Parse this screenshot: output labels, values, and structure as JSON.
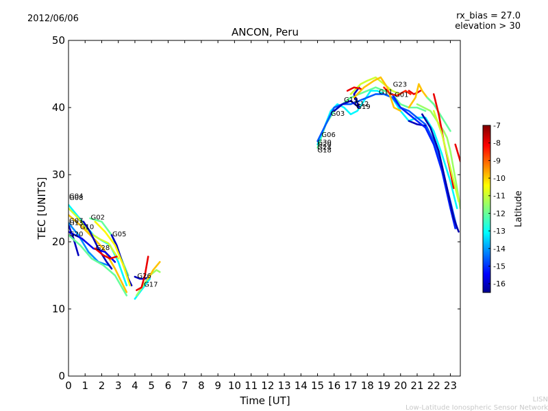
{
  "header": {
    "date": "2012/06/06",
    "title": "ANCON, Peru",
    "bias_text": "rx_bias = 27.0",
    "elevation_text": "elevation > 30"
  },
  "footer": {
    "brand": "LISN",
    "org": "Low-Latitude Ionospheric Sensor Network"
  },
  "colorbar": {
    "label": "Latitude",
    "ticks": [
      "-7",
      "-8",
      "-9",
      "-10",
      "-11",
      "-12",
      "-13",
      "-14",
      "-15",
      "-16"
    ],
    "range": [
      -16.5,
      -7
    ],
    "colormap": [
      "#00008f",
      "#0000ff",
      "#0080ff",
      "#00ffff",
      "#80ff80",
      "#ffff00",
      "#ff8000",
      "#ff0000",
      "#800000"
    ]
  },
  "chart_data": {
    "type": "line",
    "title": "ANCON, Peru",
    "xlabel": "Time [UT]",
    "ylabel": "TEC [UNITS]",
    "xlim": [
      0,
      23.6
    ],
    "ylim": [
      0,
      50
    ],
    "xticks": [
      "0",
      "1",
      "2",
      "3",
      "4",
      "5",
      "6",
      "7",
      "8",
      "9",
      "10",
      "11",
      "12",
      "13",
      "14",
      "15",
      "16",
      "17",
      "18",
      "19",
      "20",
      "21",
      "22",
      "23"
    ],
    "yticks": [
      "0",
      "10",
      "20",
      "30",
      "40",
      "50"
    ],
    "grid": false,
    "series": [
      {
        "lat": -13.0,
        "values": [
          [
            0.0,
            25.5
          ],
          [
            0.5,
            24.0
          ],
          [
            1.0,
            22.5
          ],
          [
            1.5,
            21.0
          ],
          [
            2.0,
            20.2
          ],
          [
            2.5,
            19.5
          ],
          [
            3.0,
            17.0
          ],
          [
            3.5,
            13.5
          ]
        ]
      },
      {
        "lat": -11.0,
        "values": [
          [
            0.0,
            25.0
          ],
          [
            0.6,
            23.5
          ],
          [
            1.2,
            21.5
          ],
          [
            1.8,
            20.5
          ],
          [
            2.4,
            19.8
          ],
          [
            3.0,
            17.5
          ]
        ]
      },
      {
        "lat": -10.0,
        "values": [
          [
            0.0,
            24.0
          ],
          [
            0.7,
            22.5
          ],
          [
            1.4,
            20.8
          ],
          [
            2.1,
            19.0
          ],
          [
            2.8,
            16.0
          ],
          [
            3.5,
            12.5
          ]
        ]
      },
      {
        "lat": -16.0,
        "values": [
          [
            0.0,
            22.5
          ],
          [
            0.3,
            20.5
          ],
          [
            0.6,
            18.0
          ]
        ]
      },
      {
        "lat": -14.0,
        "values": [
          [
            0.0,
            22.8
          ],
          [
            0.6,
            21.0
          ],
          [
            1.2,
            18.5
          ],
          [
            1.8,
            17.0
          ],
          [
            2.4,
            16.5
          ]
        ]
      },
      {
        "lat": -15.5,
        "values": [
          [
            0.0,
            21.5
          ],
          [
            0.8,
            20.5
          ],
          [
            1.5,
            19.0
          ],
          [
            2.2,
            18.5
          ],
          [
            2.8,
            17.0
          ]
        ]
      },
      {
        "lat": -12.0,
        "values": [
          [
            0.0,
            21.0
          ],
          [
            0.7,
            19.5
          ],
          [
            1.4,
            17.5
          ],
          [
            2.1,
            16.5
          ],
          [
            2.8,
            15.0
          ],
          [
            3.5,
            12.0
          ]
        ]
      },
      {
        "lat": -16.0,
        "values": [
          [
            0.9,
            23.0
          ],
          [
            1.3,
            21.5
          ],
          [
            1.8,
            19.0
          ],
          [
            2.3,
            17.0
          ],
          [
            2.6,
            16.0
          ]
        ]
      },
      {
        "lat": -12.0,
        "values": [
          [
            1.3,
            23.5
          ],
          [
            2.0,
            23.0
          ],
          [
            2.6,
            21.0
          ],
          [
            3.1,
            18.0
          ],
          [
            3.6,
            15.0
          ]
        ]
      },
      {
        "lat": -8.0,
        "values": [
          [
            1.6,
            19.0
          ],
          [
            2.1,
            18.0
          ],
          [
            2.5,
            17.5
          ],
          [
            2.9,
            17.8
          ]
        ]
      },
      {
        "lat": -16.0,
        "values": [
          [
            2.6,
            21.0
          ],
          [
            2.9,
            19.5
          ],
          [
            3.3,
            16.5
          ],
          [
            3.6,
            14.5
          ],
          [
            3.8,
            13.5
          ]
        ]
      },
      {
        "lat": -10.5,
        "values": [
          [
            1.6,
            23.0
          ],
          [
            2.2,
            21.5
          ],
          [
            2.8,
            19.5
          ],
          [
            3.3,
            16.5
          ],
          [
            3.7,
            13.5
          ]
        ]
      },
      {
        "lat": -16.0,
        "values": [
          [
            4.0,
            14.8
          ],
          [
            4.3,
            14.5
          ],
          [
            4.6,
            14.5
          ],
          [
            4.9,
            14.8
          ]
        ]
      },
      {
        "lat": -13.0,
        "values": [
          [
            4.0,
            11.5
          ],
          [
            4.3,
            12.5
          ],
          [
            4.6,
            13.5
          ],
          [
            4.9,
            14.5
          ]
        ]
      },
      {
        "lat": -11.5,
        "values": [
          [
            4.1,
            12.0
          ],
          [
            4.5,
            13.5
          ],
          [
            4.9,
            15.0
          ],
          [
            5.3,
            15.8
          ],
          [
            5.5,
            15.5
          ]
        ]
      },
      {
        "lat": -8.0,
        "values": [
          [
            4.1,
            12.8
          ],
          [
            4.4,
            13.2
          ],
          [
            4.6,
            15.0
          ],
          [
            4.8,
            17.8
          ]
        ]
      },
      {
        "lat": -10.0,
        "values": [
          [
            4.8,
            14.5
          ],
          [
            5.1,
            15.8
          ],
          [
            5.5,
            17.0
          ]
        ]
      },
      {
        "lat": -12.0,
        "values": [
          [
            15.0,
            34.0
          ],
          [
            15.5,
            37.5
          ],
          [
            16.0,
            39.5
          ],
          [
            16.5,
            40.5
          ],
          [
            17.0,
            41.5
          ],
          [
            17.5,
            42.0
          ],
          [
            18.0,
            42.5
          ],
          [
            18.5,
            43.0
          ],
          [
            19.0,
            42.5
          ],
          [
            19.5,
            42.0
          ],
          [
            20.0,
            40.5
          ],
          [
            20.5,
            40.0
          ],
          [
            21.0,
            40.0
          ],
          [
            21.5,
            39.5
          ]
        ]
      },
      {
        "lat": -13.0,
        "values": [
          [
            15.0,
            34.5
          ],
          [
            15.4,
            37.0
          ],
          [
            15.8,
            39.5
          ],
          [
            16.2,
            40.5
          ],
          [
            16.6,
            40.0
          ],
          [
            17.0,
            39.0
          ],
          [
            17.4,
            39.5
          ],
          [
            17.8,
            41.0
          ],
          [
            18.2,
            42.5
          ],
          [
            18.6,
            42.5
          ],
          [
            19.0,
            42.0
          ],
          [
            19.5,
            41.5
          ],
          [
            20.0,
            39.5
          ],
          [
            20.5,
            38.0
          ],
          [
            21.0,
            38.5
          ],
          [
            21.5,
            38.5
          ],
          [
            22.0,
            36.5
          ],
          [
            22.5,
            33.0
          ],
          [
            23.0,
            29.0
          ],
          [
            23.4,
            25.0
          ]
        ]
      },
      {
        "lat": -14.5,
        "values": [
          [
            15.0,
            35.0
          ],
          [
            15.5,
            37.5
          ],
          [
            16.0,
            40.0
          ],
          [
            16.5,
            40.5
          ],
          [
            17.0,
            40.5
          ],
          [
            17.5,
            41.0
          ],
          [
            18.0,
            41.5
          ],
          [
            18.5,
            42.0
          ],
          [
            19.0,
            42.0
          ],
          [
            19.5,
            41.5
          ],
          [
            20.0,
            40.0
          ],
          [
            20.5,
            39.5
          ],
          [
            21.0,
            38.5
          ],
          [
            21.5,
            37.5
          ],
          [
            22.0,
            35.0
          ],
          [
            22.5,
            31.0
          ],
          [
            23.0,
            26.0
          ],
          [
            23.4,
            22.0
          ]
        ]
      },
      {
        "lat": -16.0,
        "values": [
          [
            16.0,
            39.5
          ],
          [
            16.5,
            40.5
          ],
          [
            17.0,
            41.0
          ],
          [
            17.5,
            40.0
          ],
          [
            17.2,
            42.0
          ],
          [
            17.5,
            43.0
          ]
        ]
      },
      {
        "lat": -16.0,
        "values": [
          [
            20.5,
            38.0
          ],
          [
            21.0,
            37.5
          ],
          [
            21.5,
            37.3
          ]
        ]
      },
      {
        "lat": -15.0,
        "values": [
          [
            19.5,
            42.0
          ],
          [
            20.0,
            40.0
          ],
          [
            20.5,
            39.0
          ],
          [
            21.0,
            38.0
          ],
          [
            21.5,
            37.0
          ],
          [
            22.0,
            34.5
          ],
          [
            22.5,
            30.5
          ],
          [
            23.0,
            25.0
          ],
          [
            23.3,
            22.0
          ]
        ]
      },
      {
        "lat": -16.2,
        "values": [
          [
            21.3,
            39.0
          ],
          [
            21.8,
            37.0
          ],
          [
            22.3,
            33.5
          ],
          [
            22.8,
            28.0
          ],
          [
            23.2,
            23.5
          ],
          [
            23.5,
            21.5
          ]
        ]
      },
      {
        "lat": -11.0,
        "values": [
          [
            17.0,
            42.0
          ],
          [
            17.6,
            43.5
          ],
          [
            18.0,
            44.0
          ],
          [
            18.5,
            44.5
          ],
          [
            19.0,
            43.5
          ],
          [
            19.5,
            42.5
          ],
          [
            20.0,
            42.0
          ]
        ]
      },
      {
        "lat": -10.0,
        "values": [
          [
            17.2,
            41.5
          ],
          [
            17.8,
            43.0
          ],
          [
            18.4,
            44.0
          ],
          [
            18.8,
            44.5
          ],
          [
            19.2,
            43.0
          ],
          [
            19.6,
            40.0
          ],
          [
            20.0,
            39.5
          ]
        ]
      },
      {
        "lat": -8.0,
        "values": [
          [
            16.8,
            42.5
          ],
          [
            17.2,
            43.0
          ],
          [
            17.6,
            42.8
          ]
        ]
      },
      {
        "lat": -8.5,
        "values": [
          [
            19.0,
            43.0
          ],
          [
            19.4,
            42.0
          ],
          [
            19.8,
            41.8
          ],
          [
            20.3,
            42.5
          ],
          [
            20.6,
            42.0
          ]
        ]
      },
      {
        "lat": -8.0,
        "values": [
          [
            20.5,
            42.5
          ],
          [
            20.8,
            42.0
          ],
          [
            21.0,
            42.2
          ],
          [
            21.2,
            42.5
          ]
        ]
      },
      {
        "lat": -10.0,
        "values": [
          [
            20.5,
            40.0
          ],
          [
            20.9,
            41.5
          ],
          [
            21.1,
            43.5
          ],
          [
            21.3,
            42.5
          ],
          [
            21.6,
            41.5
          ],
          [
            22.0,
            40.5
          ]
        ]
      },
      {
        "lat": -11.5,
        "values": [
          [
            21.0,
            40.5
          ],
          [
            21.4,
            40.0
          ],
          [
            21.8,
            39.5
          ],
          [
            22.2,
            38.0
          ],
          [
            22.6,
            36.5
          ],
          [
            22.8,
            35.5
          ],
          [
            23.0,
            33.5
          ],
          [
            23.4,
            28.0
          ],
          [
            23.6,
            25.0
          ]
        ]
      },
      {
        "lat": -12.0,
        "values": [
          [
            21.6,
            41.5
          ],
          [
            22.0,
            40.5
          ],
          [
            22.5,
            38.5
          ],
          [
            23.0,
            36.5
          ]
        ]
      },
      {
        "lat": -8.0,
        "values": [
          [
            22.0,
            42.0
          ],
          [
            22.3,
            39.0
          ],
          [
            22.6,
            35.0
          ],
          [
            23.0,
            30.5
          ],
          [
            23.2,
            28.0
          ]
        ]
      },
      {
        "lat": -8.0,
        "values": [
          [
            23.3,
            34.5
          ],
          [
            23.6,
            32.0
          ]
        ]
      },
      {
        "lat": -11.0,
        "values": [
          [
            22.0,
            39.5
          ],
          [
            22.5,
            36.0
          ],
          [
            23.0,
            31.0
          ],
          [
            23.5,
            26.0
          ]
        ]
      }
    ],
    "annotations": [
      {
        "text": "G04",
        "x": 0.0,
        "y": 26.5
      },
      {
        "text": "G08",
        "x": 0.0,
        "y": 26.2
      },
      {
        "text": "G07",
        "x": 0.0,
        "y": 22.8
      },
      {
        "text": "G13",
        "x": 0.0,
        "y": 22.5
      },
      {
        "text": "G10",
        "x": 0.65,
        "y": 21.9
      },
      {
        "text": "G02",
        "x": 1.3,
        "y": 23.3
      },
      {
        "text": "G20",
        "x": 0.0,
        "y": 20.8
      },
      {
        "text": "G05",
        "x": 2.6,
        "y": 20.8
      },
      {
        "text": "G28",
        "x": 1.6,
        "y": 18.8
      },
      {
        "text": "G26",
        "x": 4.1,
        "y": 14.6
      },
      {
        "text": "G17",
        "x": 4.5,
        "y": 13.3
      },
      {
        "text": "G06",
        "x": 15.2,
        "y": 35.6
      },
      {
        "text": "G30",
        "x": 14.95,
        "y": 34.5
      },
      {
        "text": "G20",
        "x": 14.95,
        "y": 34.2
      },
      {
        "text": "G24",
        "x": 14.95,
        "y": 33.7
      },
      {
        "text": "G18",
        "x": 14.95,
        "y": 33.3
      },
      {
        "text": "G03",
        "x": 15.75,
        "y": 38.8
      },
      {
        "text": "G19",
        "x": 16.55,
        "y": 40.8
      },
      {
        "text": "G12",
        "x": 17.2,
        "y": 40.2
      },
      {
        "text": "G19",
        "x": 17.3,
        "y": 39.8
      },
      {
        "text": "G11",
        "x": 18.65,
        "y": 42.0
      },
      {
        "text": "G23",
        "x": 19.5,
        "y": 43.1
      },
      {
        "text": "G01",
        "x": 19.6,
        "y": 41.6
      }
    ]
  }
}
